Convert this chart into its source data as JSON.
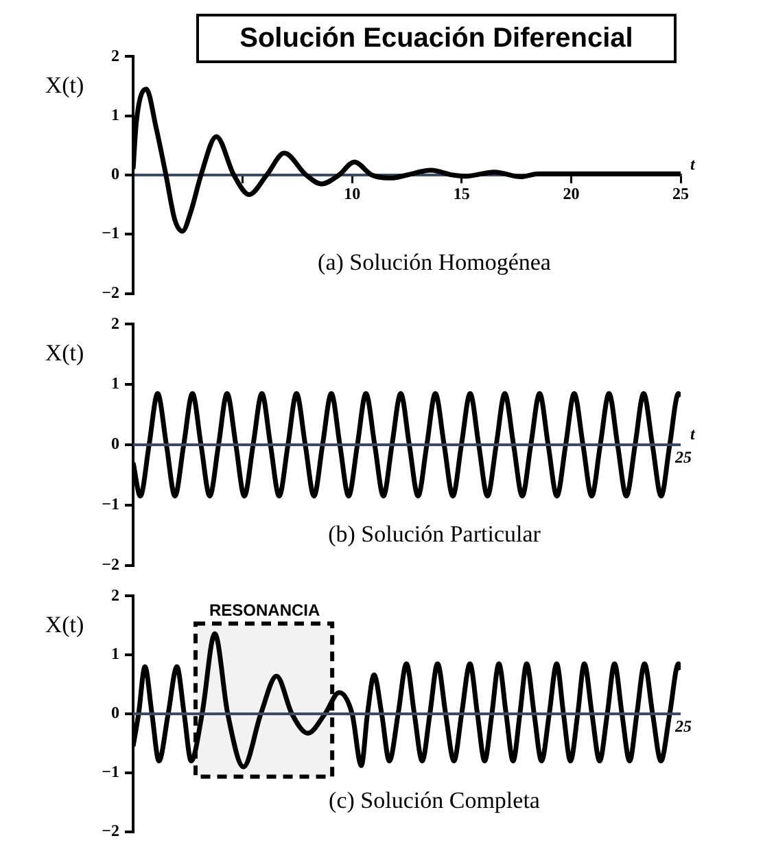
{
  "chart_data": [
    {
      "type": "line",
      "title": "Solución Ecuación Diferencial",
      "subtitle": "(a) Solución Homogénea",
      "xlabel": "t",
      "ylabel": "X(t)",
      "color": "#000000",
      "marker": "none",
      "line_style": "solid",
      "xlim": [
        0,
        25
      ],
      "ylim": [
        -2,
        2
      ],
      "yticks": [
        -2,
        -1,
        0,
        1,
        2
      ],
      "xticks": [
        {
          "value": 5,
          "label": null
        },
        10,
        15,
        20,
        25
      ],
      "x": [
        0,
        0.15,
        0.6,
        1.05,
        1.5,
        1.9,
        2.25,
        2.65,
        3.1,
        3.8,
        4.6,
        5.3,
        6.1,
        6.9,
        7.9,
        8.6,
        9.4,
        10.1,
        10.9,
        11.8,
        12.5,
        13.6,
        14.6,
        15.2,
        16.5,
        17.7,
        18.5,
        25
      ],
      "values": [
        0.1,
        0.9,
        1.45,
        0.8,
        0,
        -0.75,
        -0.95,
        -0.6,
        0,
        0.65,
        0,
        -0.33,
        0,
        0.37,
        0,
        -0.15,
        0,
        0.22,
        0,
        -0.05,
        0,
        0.08,
        0,
        -0.02,
        0.05,
        -0.03,
        0.02,
        0.02
      ]
    },
    {
      "type": "line",
      "subtitle": "(b) Solución Particular",
      "xlabel": "t",
      "ylabel": "X(t)",
      "color": "#000000",
      "marker": "none",
      "line_style": "solid",
      "xlim": [
        0,
        25
      ],
      "ylim": [
        -2,
        2
      ],
      "yticks": [
        -2,
        -1,
        0,
        1,
        2
      ],
      "tick_labels": "y",
      "annotations": [
        "25"
      ],
      "ref_lines": [
        {
          "axis": "y",
          "value": 0,
          "color": "#3d4a66"
        }
      ],
      "x": [
        0,
        0.33,
        0.73,
        1.12,
        1.52,
        1.91,
        2.31,
        2.71,
        3.1,
        3.5,
        3.9,
        4.29,
        4.69,
        5.08,
        5.48,
        5.88,
        6.27,
        6.67,
        7.07,
        7.46,
        7.86,
        8.26,
        8.65,
        9.05,
        9.44,
        9.84,
        10.24,
        10.63,
        11.03,
        11.43,
        11.82,
        12.22,
        12.61,
        13.01,
        13.41,
        13.8,
        14.2,
        14.6,
        14.99,
        15.39,
        15.78,
        16.18,
        16.58,
        16.97,
        17.37,
        17.77,
        18.16,
        18.56,
        18.95,
        19.35,
        19.75,
        20.14,
        20.54,
        20.94,
        21.33,
        21.73,
        22.12,
        22.52,
        22.92,
        23.31,
        23.71,
        24.11,
        24.5,
        24.9,
        25
      ],
      "values": [
        -0.3,
        -0.85,
        0,
        0.85,
        0,
        -0.85,
        0,
        0.85,
        0,
        -0.85,
        0,
        0.85,
        0,
        -0.85,
        0,
        0.85,
        0,
        -0.85,
        0,
        0.85,
        0,
        -0.85,
        0,
        0.85,
        0,
        -0.85,
        0,
        0.85,
        0,
        -0.85,
        0,
        0.85,
        0,
        -0.85,
        0,
        0.85,
        0,
        -0.85,
        0,
        0.85,
        0,
        -0.85,
        0,
        0.85,
        0,
        -0.85,
        0,
        0.85,
        0,
        -0.85,
        0,
        0.85,
        0,
        -0.85,
        0,
        0.85,
        0,
        -0.85,
        0,
        0.85,
        0,
        -0.85,
        0,
        0.85,
        0.8
      ]
    },
    {
      "type": "line",
      "subtitle": "(c) Solución Completa",
      "ylabel": "X(t)",
      "color": "#000000",
      "marker": "none",
      "line_style": "solid",
      "xlim": [
        0,
        25
      ],
      "ylim": [
        -2,
        2
      ],
      "yticks": [
        -2,
        -1,
        0,
        1,
        2
      ],
      "tick_labels": "y",
      "annotations": [
        "25"
      ],
      "ref_lines": [
        {
          "axis": "y",
          "value": 0,
          "color": "#3d4a66"
        }
      ],
      "bands": [
        {
          "axis": "x",
          "from": 2.85,
          "to": 9.09,
          "label": "RESONANCIA",
          "color": "#000000"
        }
      ],
      "x": [
        0,
        0.25,
        0.54,
        0.86,
        1.18,
        1.6,
        2,
        2.33,
        2.65,
        3.15,
        3.73,
        4.32,
        5.04,
        5.83,
        6.55,
        7.25,
        7.98,
        8.76,
        9.41,
        10,
        10.42,
        10.7,
        11,
        11.35,
        11.7,
        12.1,
        12.48,
        12.84,
        13.2,
        13.55,
        13.9,
        14.27,
        14.65,
        15,
        15.38,
        15.72,
        16.05,
        16.38,
        16.7,
        17.03,
        17.35,
        17.66,
        17.97,
        18.31,
        18.65,
        19,
        19.34,
        19.65,
        19.97,
        20.3,
        20.6,
        20.95,
        21.3,
        21.65,
        21.98,
        22.32,
        22.67,
        23,
        23.35,
        23.72,
        24.1,
        24.5,
        24.9,
        25
      ],
      "values": [
        -0.55,
        0,
        0.8,
        0,
        -0.8,
        0,
        0.8,
        0,
        -0.8,
        0,
        1.36,
        0,
        -0.9,
        0,
        0.64,
        0,
        -0.33,
        0,
        0.36,
        0,
        -0.88,
        0,
        0.66,
        0,
        -0.8,
        0,
        0.85,
        0,
        -0.8,
        0,
        0.85,
        0,
        -0.8,
        0,
        0.85,
        0,
        -0.8,
        0,
        0.85,
        0,
        -0.8,
        0,
        0.85,
        0,
        -0.8,
        0,
        0.85,
        0,
        -0.8,
        0,
        0.85,
        0,
        -0.8,
        0,
        0.85,
        0,
        -0.8,
        0,
        0.85,
        0,
        -0.8,
        0,
        0.85,
        0.75
      ]
    }
  ]
}
